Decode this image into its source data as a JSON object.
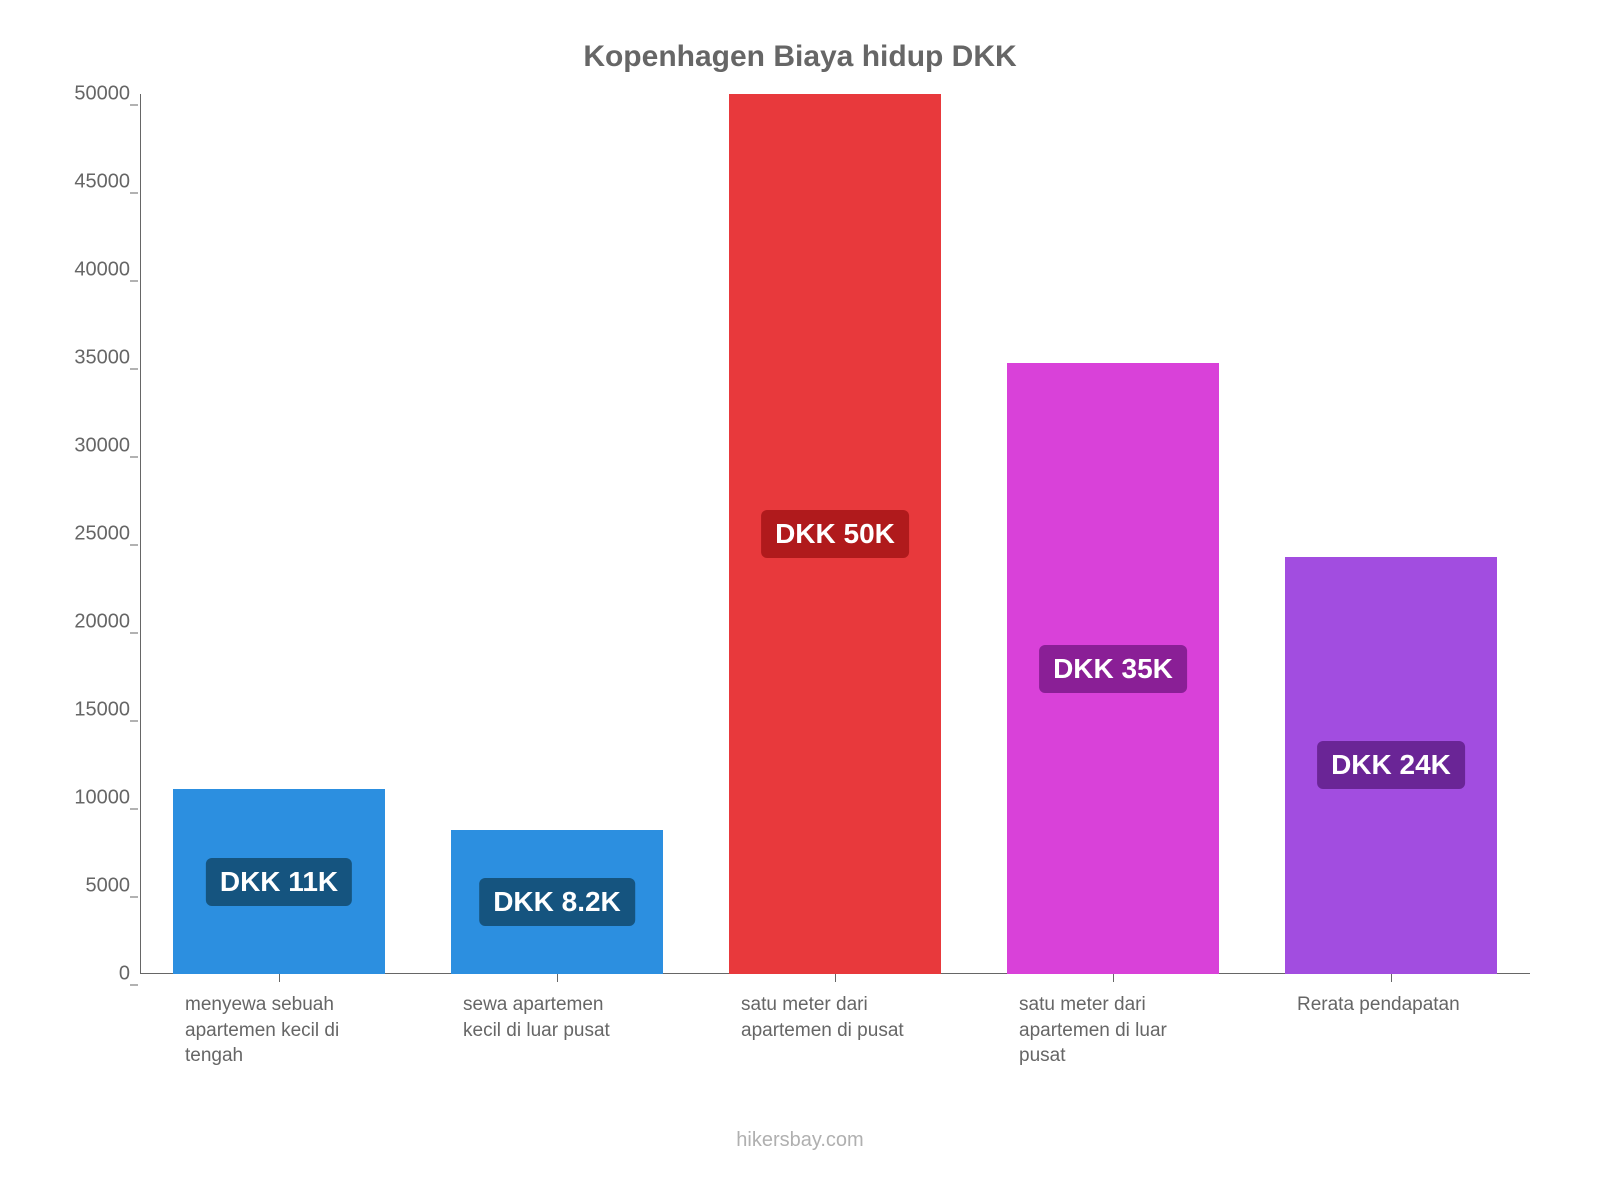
{
  "chart": {
    "type": "bar",
    "title": "Kopenhagen Biaya hidup DKK",
    "title_fontsize": 30,
    "title_color": "#666666",
    "background_color": "#ffffff",
    "axis_color": "#666666",
    "tick_label_color": "#666666",
    "tick_fontsize": 20,
    "xlabel_fontsize": 19,
    "value_label_fontsize": 28,
    "ylim": [
      0,
      50000
    ],
    "yticks": [
      0,
      5000,
      10000,
      15000,
      20000,
      25000,
      30000,
      35000,
      40000,
      45000,
      50000
    ],
    "bar_width": 0.76,
    "bars": [
      {
        "category": "menyewa sebuah apartemen kecil di tengah",
        "value": 10500,
        "value_label": "DKK 11K",
        "bar_color": "#2c8fe0",
        "label_bg": "#15547f"
      },
      {
        "category": "sewa apartemen kecil di luar pusat",
        "value": 8200,
        "value_label": "DKK 8.2K",
        "bar_color": "#2c8fe0",
        "label_bg": "#15547f"
      },
      {
        "category": "satu meter dari apartemen di pusat",
        "value": 50000,
        "value_label": "DKK 50K",
        "bar_color": "#e8393c",
        "label_bg": "#b01a1c"
      },
      {
        "category": "satu meter dari apartemen di luar pusat",
        "value": 34700,
        "value_label": "DKK 35K",
        "bar_color": "#d941d9",
        "label_bg": "#8a1f96"
      },
      {
        "category": "Rerata pendapatan",
        "value": 23700,
        "value_label": "DKK 24K",
        "bar_color": "#a24de0",
        "label_bg": "#6a2596"
      }
    ],
    "source": "hikersbay.com"
  }
}
